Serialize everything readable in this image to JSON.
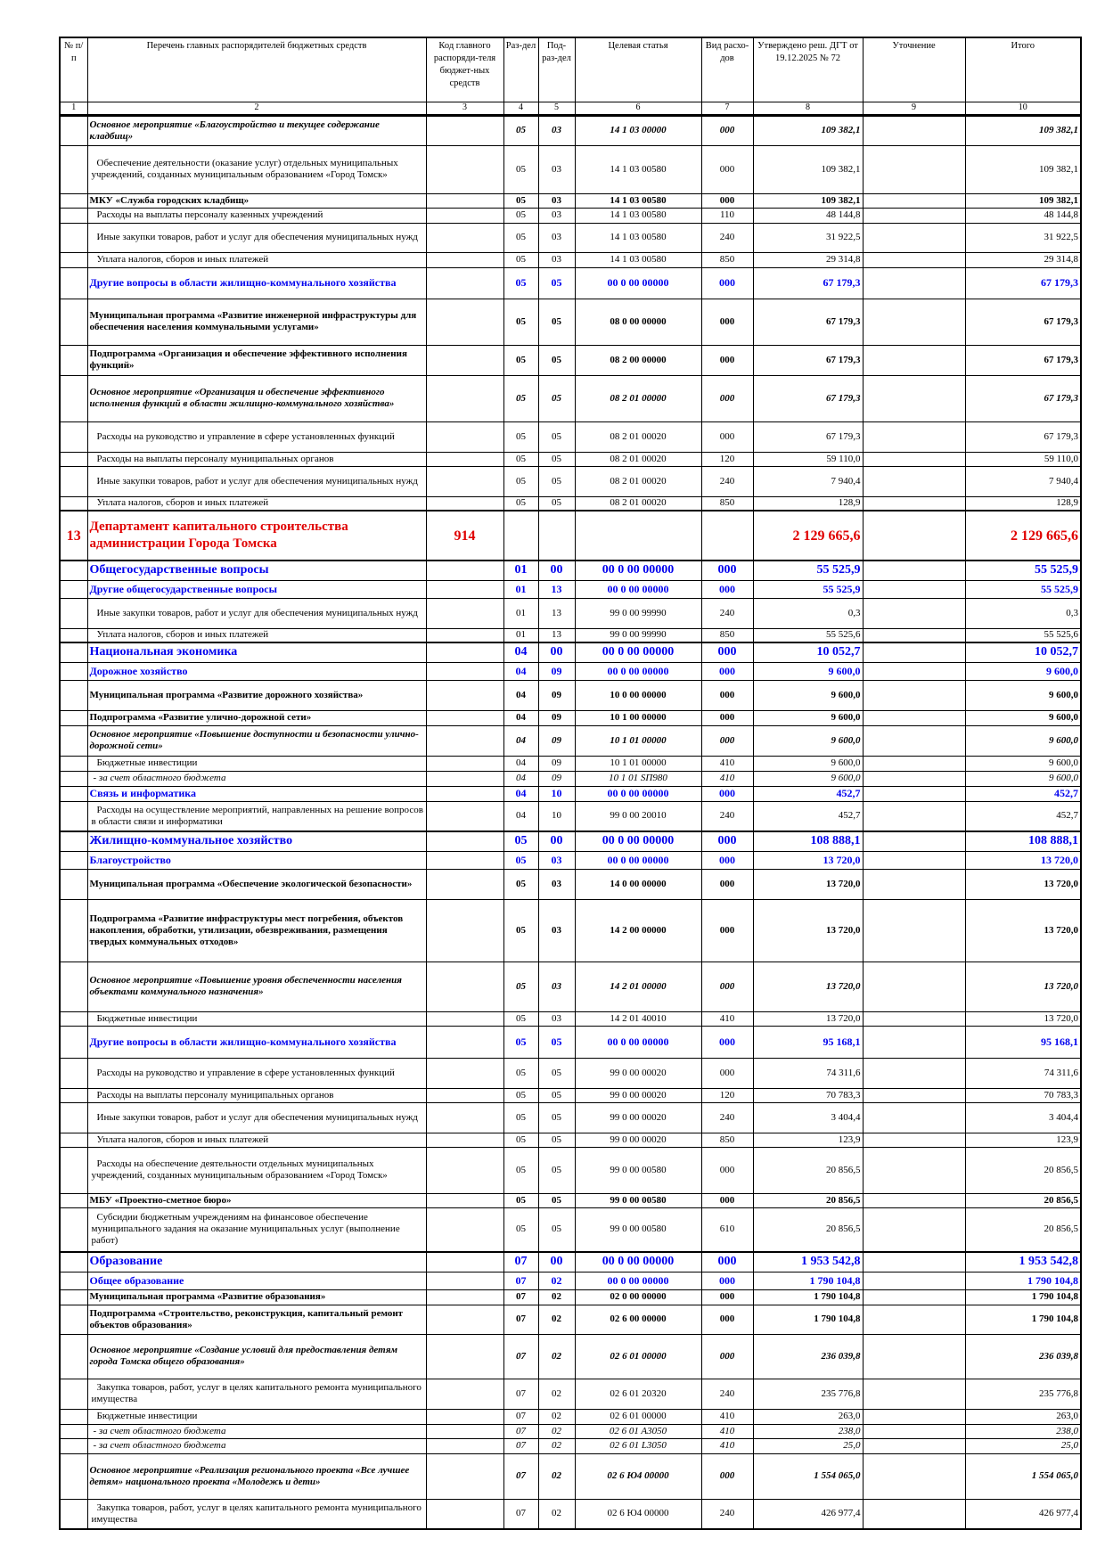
{
  "header": {
    "cols": [
      "№ п/п",
      "Перечень главных распорядителей бюджетных средств",
      "Код главного распоряди-теля бюджет-ных средств",
      "Раз-дел",
      "Под-раз-дел",
      "Целевая статья",
      "Вид расхо-дов",
      "Утверждено реш. ДГТ от 19.12.2025 № 72",
      "Уточнение",
      "Итого"
    ],
    "nums": [
      "1",
      "2",
      "3",
      "4",
      "5",
      "6",
      "7",
      "8",
      "9",
      "10"
    ]
  },
  "colors": {
    "section": "#0000ee",
    "department": "#e00000"
  },
  "rows": [
    {
      "s": "ib",
      "name": "Основное мероприятие «Благоустройство и текущее содержание кладбищ»",
      "rz": "05",
      "prz": "03",
      "cs": "14 1 03 00000",
      "vr": "000",
      "appr": "109 382,1",
      "total": "109 382,1"
    },
    {
      "s": "n",
      "name": "Обеспечение деятельности (оказание услуг) отдельных муниципальных учреждений, созданных муниципальным образованием «Город Томск»",
      "rz": "05",
      "prz": "03",
      "cs": "14 1 03 00580",
      "vr": "000",
      "appr": "109 382,1",
      "total": "109 382,1"
    },
    {
      "s": "b",
      "name": "МКУ «Служба городских кладбищ»",
      "rz": "05",
      "prz": "03",
      "cs": "14 1 03 00580",
      "vr": "000",
      "appr": "109 382,1",
      "total": "109 382,1"
    },
    {
      "s": "n",
      "name": "Расходы на выплаты персоналу казенных учреждений",
      "rz": "05",
      "prz": "03",
      "cs": "14 1 03 00580",
      "vr": "110",
      "appr": "48 144,8",
      "total": "48 144,8"
    },
    {
      "s": "n",
      "name": "Иные закупки товаров, работ и услуг для обеспечения муниципальных нужд",
      "rz": "05",
      "prz": "03",
      "cs": "14 1 03 00580",
      "vr": "240",
      "appr": "31 922,5",
      "total": "31 922,5"
    },
    {
      "s": "n",
      "name": "Уплата налогов, сборов и иных платежей",
      "rz": "05",
      "prz": "03",
      "cs": "14 1 03 00580",
      "vr": "850",
      "appr": "29 314,8",
      "total": "29 314,8"
    },
    {
      "s": "blue",
      "name": "Другие вопросы в области жилищно-коммунального хозяйства",
      "rz": "05",
      "prz": "05",
      "cs": "00 0 00 00000",
      "vr": "000",
      "appr": "67 179,3",
      "total": "67 179,3"
    },
    {
      "s": "b",
      "name": "Муниципальная программа «Развитие инженерной инфраструктуры для обеспечения населения коммунальными услугами»",
      "rz": "05",
      "prz": "05",
      "cs": "08 0 00 00000",
      "vr": "000",
      "appr": "67 179,3",
      "total": "67 179,3"
    },
    {
      "s": "b",
      "name": "Подпрограмма «Организация и обеспечение эффективного исполнения функций»",
      "rz": "05",
      "prz": "05",
      "cs": "08 2 00 00000",
      "vr": "000",
      "appr": "67 179,3",
      "total": "67 179,3"
    },
    {
      "s": "ib",
      "name": "Основное мероприятие «Организация и обеспечение эффективного исполнения функций в области жилищно-коммунального хозяйства»",
      "rz": "05",
      "prz": "05",
      "cs": "08 2 01 00000",
      "vr": "000",
      "appr": "67 179,3",
      "total": "67 179,3"
    },
    {
      "s": "n",
      "name": "Расходы на руководство и управление в сфере установленных функций",
      "rz": "05",
      "prz": "05",
      "cs": "08 2 01 00020",
      "vr": "000",
      "appr": "67 179,3",
      "total": "67 179,3"
    },
    {
      "s": "n",
      "name": "Расходы на выплаты персоналу муниципальных органов",
      "rz": "05",
      "prz": "05",
      "cs": "08 2 01 00020",
      "vr": "120",
      "appr": "59 110,0",
      "total": "59 110,0"
    },
    {
      "s": "n",
      "name": "Иные закупки товаров, работ и услуг для обеспечения муниципальных нужд",
      "rz": "05",
      "prz": "05",
      "cs": "08 2 01 00020",
      "vr": "240",
      "appr": "7 940,4",
      "total": "7 940,4"
    },
    {
      "s": "n",
      "name": "Уплата налогов, сборов и иных платежей",
      "rz": "05",
      "prz": "05",
      "cs": "08 2 01 00020",
      "vr": "850",
      "appr": "128,9",
      "total": "128,9"
    },
    {
      "s": "red",
      "num": "13",
      "name": "Департамент капитального строительства администрации Города Томска",
      "code": "914",
      "rz": "",
      "prz": "",
      "cs": "",
      "vr": "",
      "appr": "2 129 665,6",
      "total": "2 129 665,6"
    },
    {
      "s": "bluel",
      "name": "Общегосударственные вопросы",
      "rz": "01",
      "prz": "00",
      "cs": "00 0 00 00000",
      "vr": "000",
      "appr": "55 525,9",
      "total": "55 525,9"
    },
    {
      "s": "blue",
      "name": "Другие общегосударственные вопросы",
      "rz": "01",
      "prz": "13",
      "cs": "00 0 00 00000",
      "vr": "000",
      "appr": "55 525,9",
      "total": "55 525,9"
    },
    {
      "s": "n",
      "name": "Иные закупки товаров, работ и услуг для обеспечения муниципальных нужд",
      "rz": "01",
      "prz": "13",
      "cs": "99 0 00 99990",
      "vr": "240",
      "appr": "0,3",
      "total": "0,3"
    },
    {
      "s": "n",
      "name": "Уплата налогов, сборов и иных платежей",
      "rz": "01",
      "prz": "13",
      "cs": "99 0 00 99990",
      "vr": "850",
      "appr": "55 525,6",
      "total": "55 525,6"
    },
    {
      "s": "bluel",
      "name": "Национальная экономика",
      "rz": "04",
      "prz": "00",
      "cs": "00 0 00 00000",
      "vr": "000",
      "appr": "10 052,7",
      "total": "10 052,7"
    },
    {
      "s": "blue",
      "name": "Дорожное хозяйство",
      "rz": "04",
      "prz": "09",
      "cs": "00 0 00 00000",
      "vr": "000",
      "appr": "9 600,0",
      "total": "9 600,0"
    },
    {
      "s": "b",
      "name": "Муниципальная программа «Развитие дорожного хозяйства»",
      "rz": "04",
      "prz": "09",
      "cs": "10 0 00 00000",
      "vr": "000",
      "appr": "9 600,0",
      "total": "9 600,0"
    },
    {
      "s": "b",
      "name": "Подпрограмма «Развитие улично-дорожной сети»",
      "rz": "04",
      "prz": "09",
      "cs": "10 1 00 00000",
      "vr": "000",
      "appr": "9 600,0",
      "total": "9 600,0"
    },
    {
      "s": "ib",
      "name": "Основное мероприятие «Повышение доступности и безопасности улично-дорожной сети»",
      "rz": "04",
      "prz": "09",
      "cs": "10 1 01 00000",
      "vr": "000",
      "appr": "9 600,0",
      "total": "9 600,0"
    },
    {
      "s": "n",
      "name": "Бюджетные инвестиции",
      "rz": "04",
      "prz": "09",
      "cs": "10 1 01 00000",
      "vr": "410",
      "appr": "9 600,0",
      "total": "9 600,0"
    },
    {
      "s": "i",
      "name": "- за счет областного бюджета",
      "rz": "04",
      "prz": "09",
      "cs": "10 1 01 SП980",
      "vr": "410",
      "appr": "9 600,0",
      "total": "9 600,0"
    },
    {
      "s": "blue",
      "name": "Связь и информатика",
      "rz": "04",
      "prz": "10",
      "cs": "00 0 00 00000",
      "vr": "000",
      "appr": "452,7",
      "total": "452,7"
    },
    {
      "s": "n",
      "name": "Расходы на осуществление мероприятий, направленных на решение вопросов в области связи и информатики",
      "rz": "04",
      "prz": "10",
      "cs": "99 0 00 20010",
      "vr": "240",
      "appr": "452,7",
      "total": "452,7"
    },
    {
      "s": "bluel",
      "name": "Жилищно-коммунальное хозяйство",
      "rz": "05",
      "prz": "00",
      "cs": "00 0 00 00000",
      "vr": "000",
      "appr": "108 888,1",
      "total": "108 888,1"
    },
    {
      "s": "blue",
      "name": "Благоустройство",
      "rz": "05",
      "prz": "03",
      "cs": "00 0 00 00000",
      "vr": "000",
      "appr": "13 720,0",
      "total": "13 720,0"
    },
    {
      "s": "b",
      "name": "Муниципальная программа «Обеспечение экологической безопасности»",
      "rz": "05",
      "prz": "03",
      "cs": "14 0 00 00000",
      "vr": "000",
      "appr": "13 720,0",
      "total": "13 720,0"
    },
    {
      "s": "b",
      "name": "Подпрограмма «Развитие инфраструктуры мест погребения, объектов накопления, обработки, утилизации, обезвреживания, размещения твердых коммунальных отходов»",
      "rz": "05",
      "prz": "03",
      "cs": "14 2 00 00000",
      "vr": "000",
      "appr": "13 720,0",
      "total": "13 720,0"
    },
    {
      "s": "ib",
      "name": "Основное мероприятие «Повышение уровня обеспеченности населения объектами коммунального назначения»",
      "rz": "05",
      "prz": "03",
      "cs": "14 2 01 00000",
      "vr": "000",
      "appr": "13 720,0",
      "total": "13 720,0"
    },
    {
      "s": "n",
      "name": "Бюджетные инвестиции",
      "rz": "05",
      "prz": "03",
      "cs": "14 2 01 40010",
      "vr": "410",
      "appr": "13 720,0",
      "total": "13 720,0"
    },
    {
      "s": "blue",
      "name": "Другие вопросы в области жилищно-коммунального хозяйства",
      "rz": "05",
      "prz": "05",
      "cs": "00 0 00 00000",
      "vr": "000",
      "appr": "95 168,1",
      "total": "95 168,1"
    },
    {
      "s": "n",
      "name": "Расходы на руководство и управление в сфере установленных функций",
      "rz": "05",
      "prz": "05",
      "cs": "99 0 00 00020",
      "vr": "000",
      "appr": "74 311,6",
      "total": "74 311,6"
    },
    {
      "s": "n",
      "name": "Расходы на выплаты персоналу муниципальных органов",
      "rz": "05",
      "prz": "05",
      "cs": "99 0 00 00020",
      "vr": "120",
      "appr": "70 783,3",
      "total": "70 783,3"
    },
    {
      "s": "n",
      "name": "Иные закупки товаров, работ и услуг для обеспечения муниципальных нужд",
      "rz": "05",
      "prz": "05",
      "cs": "99 0 00 00020",
      "vr": "240",
      "appr": "3 404,4",
      "total": "3 404,4"
    },
    {
      "s": "n",
      "name": "Уплата налогов, сборов и иных платежей",
      "rz": "05",
      "prz": "05",
      "cs": "99 0 00 00020",
      "vr": "850",
      "appr": "123,9",
      "total": "123,9"
    },
    {
      "s": "n",
      "name": "Расходы на обеспечение деятельности отдельных муниципальных учреждений, созданных муниципальным образованием «Город Томск»",
      "rz": "05",
      "prz": "05",
      "cs": "99 0 00 00580",
      "vr": "000",
      "appr": "20 856,5",
      "total": "20 856,5"
    },
    {
      "s": "b",
      "name": "МБУ «Проектно-сметное бюро»",
      "rz": "05",
      "prz": "05",
      "cs": "99 0 00 00580",
      "vr": "000",
      "appr": "20 856,5",
      "total": "20 856,5"
    },
    {
      "s": "n",
      "name": "Субсидии бюджетным учреждениям на финансовое обеспечение муниципального задания на оказание муниципальных услуг (выполнение работ)",
      "rz": "05",
      "prz": "05",
      "cs": "99 0 00 00580",
      "vr": "610",
      "appr": "20 856,5",
      "total": "20 856,5"
    },
    {
      "s": "bluel",
      "name": "Образование",
      "rz": "07",
      "prz": "00",
      "cs": "00 0 00 00000",
      "vr": "000",
      "appr": "1 953 542,8",
      "total": "1 953 542,8"
    },
    {
      "s": "blue",
      "name": "Общее образование",
      "rz": "07",
      "prz": "02",
      "cs": "00 0 00 00000",
      "vr": "000",
      "appr": "1 790 104,8",
      "total": "1 790 104,8"
    },
    {
      "s": "b",
      "name": "Муниципальная программа «Развитие образования»",
      "rz": "07",
      "prz": "02",
      "cs": "02 0 00 00000",
      "vr": "000",
      "appr": "1 790 104,8",
      "total": "1 790 104,8"
    },
    {
      "s": "b",
      "name": "Подпрограмма «Строительство, реконструкция, капитальный ремонт объектов образования»",
      "rz": "07",
      "prz": "02",
      "cs": "02 6 00 00000",
      "vr": "000",
      "appr": "1 790 104,8",
      "total": "1 790 104,8"
    },
    {
      "s": "ib",
      "name": "Основное мероприятие «Создание условий для предоставления детям города Томска общего образования»",
      "rz": "07",
      "prz": "02",
      "cs": "02 6 01 00000",
      "vr": "000",
      "appr": "236 039,8",
      "total": "236 039,8"
    },
    {
      "s": "n",
      "name": "Закупка товаров, работ, услуг в целях капитального ремонта муниципального имущества",
      "rz": "07",
      "prz": "02",
      "cs": "02 6 01 20320",
      "vr": "240",
      "appr": "235 776,8",
      "total": "235 776,8"
    },
    {
      "s": "n",
      "name": "Бюджетные инвестиции",
      "rz": "07",
      "prz": "02",
      "cs": "02 6 01 00000",
      "vr": "410",
      "appr": "263,0",
      "total": "263,0"
    },
    {
      "s": "i",
      "name": "- за счет областного бюджета",
      "rz": "07",
      "prz": "02",
      "cs": "02 6 01 A3050",
      "vr": "410",
      "appr": "238,0",
      "total": "238,0"
    },
    {
      "s": "i",
      "name": "- за счет областного бюджета",
      "rz": "07",
      "prz": "02",
      "cs": "02 6 01 L3050",
      "vr": "410",
      "appr": "25,0",
      "total": "25,0"
    },
    {
      "s": "ib",
      "name": "Основное мероприятие «Реализация регионального проекта «Все лучшее детям» национального проекта «Молодежь и дети»",
      "rz": "07",
      "prz": "02",
      "cs": "02 6 Ю4 00000",
      "vr": "000",
      "appr": "1 554 065,0",
      "total": "1 554 065,0"
    },
    {
      "s": "n",
      "name": "Закупка товаров, работ, услуг в целях капитального ремонта муниципального имущества",
      "rz": "07",
      "prz": "02",
      "cs": "02 6 Ю4 00000",
      "vr": "240",
      "appr": "426 977,4",
      "total": "426 977,4"
    }
  ]
}
